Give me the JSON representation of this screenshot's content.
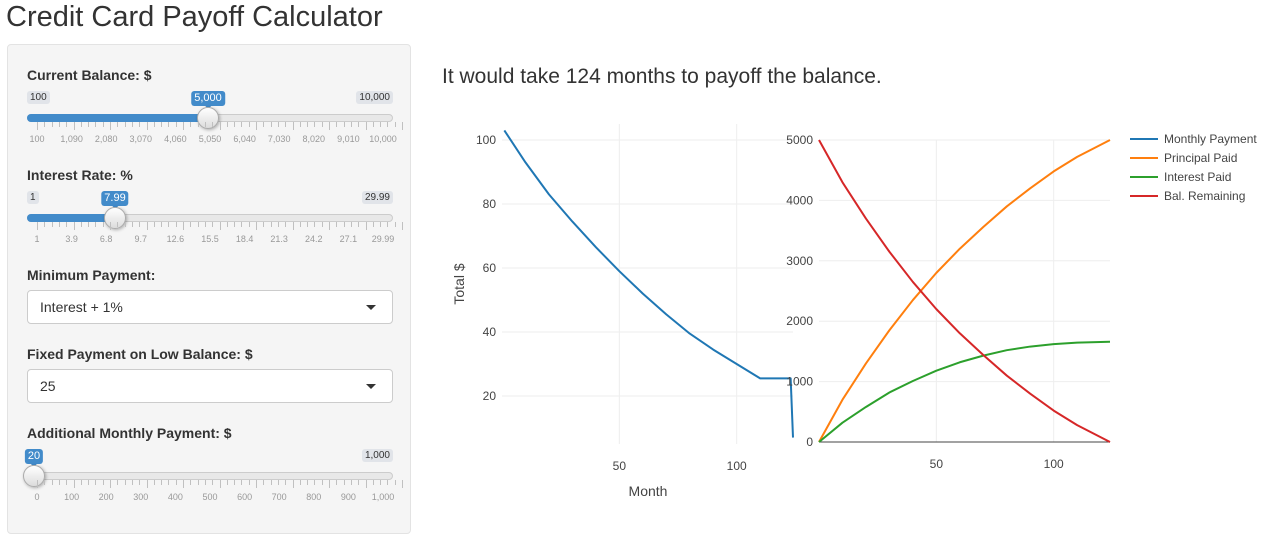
{
  "app_title": "Credit Card Payoff Calculator",
  "sidebar": {
    "balance": {
      "label": "Current Balance: $",
      "min": 100,
      "max": 10000,
      "value": 5000,
      "min_text": "100",
      "max_text": "10,000",
      "value_text": "5,000",
      "tick_labels": [
        "100",
        "1,090",
        "2,080",
        "3,070",
        "4,060",
        "5,050",
        "6,040",
        "7,030",
        "8,020",
        "9,010",
        "10,000"
      ]
    },
    "interest": {
      "label": "Interest Rate: %",
      "min": 1,
      "max": 29.99,
      "value": 7.99,
      "min_text": "1",
      "max_text": "29.99",
      "value_text": "7.99",
      "tick_labels": [
        "1",
        "3.9",
        "6.8",
        "9.7",
        "12.6",
        "15.5",
        "18.4",
        "21.3",
        "24.2",
        "27.1",
        "29.99"
      ]
    },
    "minimum_payment": {
      "label": "Minimum Payment:",
      "selected": "Interest + 1%"
    },
    "fixed_payment": {
      "label": "Fixed Payment on Low Balance: $",
      "selected": "25"
    },
    "additional": {
      "label": "Additional Monthly Payment: $",
      "min": 0,
      "max": 1000,
      "value": 20,
      "min_text": "0",
      "max_text": "1,000",
      "value_text": "20",
      "tick_labels": [
        "0",
        "100",
        "200",
        "300",
        "400",
        "500",
        "600",
        "700",
        "800",
        "900",
        "1,000"
      ]
    }
  },
  "result_text": "It would take 124 months to payoff the balance.",
  "colors": {
    "slider_accent": "#428bca",
    "monthly_payment": "#1f77b4",
    "principal_paid": "#ff7f0e",
    "interest_paid": "#2ca02c",
    "bal_remaining": "#d62728"
  },
  "chart_data": [
    {
      "type": "line",
      "xlabel": "Month",
      "ylabel": "Total $",
      "xlim": [
        0,
        124
      ],
      "ylim": [
        5,
        105
      ],
      "x_ticks": [
        "50",
        "100"
      ],
      "x_tick_values": [
        50,
        100
      ],
      "y_ticks": [
        "20",
        "40",
        "60",
        "80",
        "100"
      ],
      "y_tick_values": [
        20,
        40,
        60,
        80,
        100
      ],
      "grid": true,
      "series": [
        {
          "name": "Monthly Payment",
          "x": [
            1,
            10,
            20,
            30,
            40,
            50,
            60,
            70,
            80,
            90,
            100,
            110,
            123,
            124
          ],
          "y": [
            103,
            93,
            83,
            74.5,
            66.5,
            59,
            52,
            45.5,
            39.5,
            34.5,
            30,
            25.5,
            25.5,
            7
          ]
        }
      ]
    },
    {
      "type": "line",
      "xlabel": "Month",
      "xlim": [
        0,
        124
      ],
      "ylim": [
        0,
        5000
      ],
      "x_ticks": [
        "50",
        "100"
      ],
      "x_tick_values": [
        50,
        100
      ],
      "y_ticks": [
        "0",
        "1000",
        "2000",
        "3000",
        "4000",
        "5000"
      ],
      "y_tick_values": [
        0,
        1000,
        2000,
        3000,
        4000,
        5000
      ],
      "grid": true,
      "legend": "top-right",
      "series": [
        {
          "name": "Principal Paid",
          "x": [
            0,
            10,
            20,
            30,
            40,
            50,
            60,
            70,
            80,
            90,
            100,
            110,
            124
          ],
          "y": [
            0,
            700,
            1300,
            1850,
            2350,
            2800,
            3200,
            3560,
            3900,
            4200,
            4480,
            4720,
            5000
          ]
        },
        {
          "name": "Interest Paid",
          "x": [
            0,
            10,
            20,
            30,
            40,
            50,
            60,
            70,
            80,
            90,
            100,
            110,
            124
          ],
          "y": [
            0,
            320,
            580,
            820,
            1010,
            1180,
            1320,
            1430,
            1520,
            1580,
            1620,
            1645,
            1660
          ]
        },
        {
          "name": "Bal. Remaining",
          "x": [
            0,
            10,
            20,
            30,
            40,
            50,
            60,
            70,
            80,
            90,
            100,
            110,
            124
          ],
          "y": [
            5000,
            4300,
            3700,
            3150,
            2650,
            2200,
            1800,
            1440,
            1100,
            800,
            520,
            280,
            0
          ]
        }
      ]
    }
  ],
  "legend": [
    "Monthly Payment",
    "Principal Paid",
    "Interest Paid",
    "Bal. Remaining"
  ]
}
